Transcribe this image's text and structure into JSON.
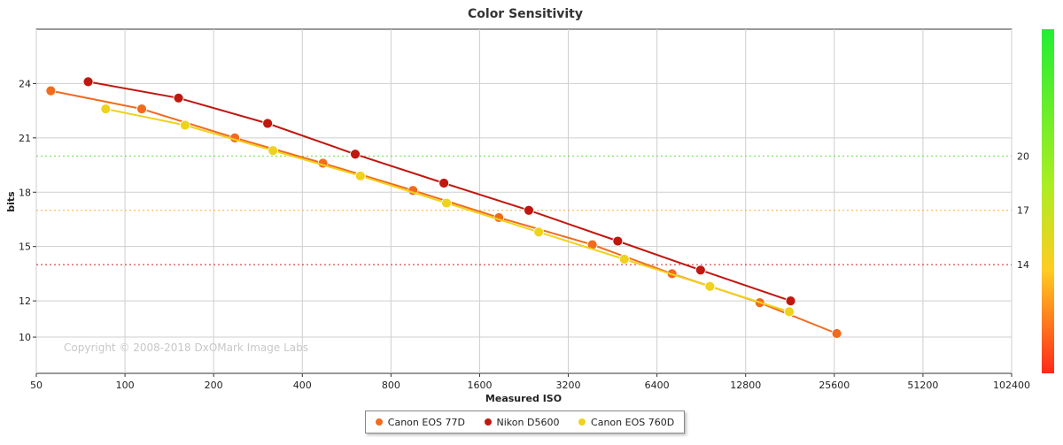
{
  "chart_data": {
    "type": "line",
    "title": "Color Sensitivity",
    "xlabel": "Measured ISO",
    "ylabel": "bits",
    "x_scale": "log2",
    "xlim": [
      50,
      102400
    ],
    "ylim": [
      8,
      27
    ],
    "x_ticks": [
      50,
      100,
      200,
      400,
      800,
      1600,
      3200,
      6400,
      12800,
      25600,
      51200,
      102400
    ],
    "x_tick_labels": [
      "50",
      "100",
      "200",
      "400",
      "800",
      "1600",
      "3200",
      "6400",
      "12800",
      "25600",
      "51200",
      "102400"
    ],
    "y_ticks": [
      10,
      12,
      15,
      18,
      21,
      24
    ],
    "y_tick_labels": [
      "10",
      "12",
      "15",
      "18",
      "21",
      "24"
    ],
    "grid": true,
    "legend_position": "bottom-center",
    "reference_lines": [
      {
        "value": 20,
        "label": "20",
        "color": "#66dd44"
      },
      {
        "value": 17,
        "label": "17",
        "color": "#ffaa33"
      },
      {
        "value": 14,
        "label": "14",
        "color": "#cc2222"
      }
    ],
    "copyright": "Copyright © 2008-2018 DxOMark Image Labs",
    "series": [
      {
        "name": "Canon EOS 77D",
        "color": "#f26b1d",
        "points": [
          [
            56,
            23.6
          ],
          [
            114,
            22.6
          ],
          [
            236,
            21.0
          ],
          [
            470,
            19.6
          ],
          [
            950,
            18.1
          ],
          [
            1860,
            16.6
          ],
          [
            3860,
            15.1
          ],
          [
            7200,
            13.5
          ],
          [
            14300,
            11.9
          ],
          [
            26100,
            10.2
          ]
        ]
      },
      {
        "name": "Nikon D5600",
        "color": "#c0170f",
        "points": [
          [
            75,
            24.1
          ],
          [
            152,
            23.2
          ],
          [
            305,
            21.8
          ],
          [
            605,
            20.1
          ],
          [
            1210,
            18.5
          ],
          [
            2350,
            17.0
          ],
          [
            4710,
            15.3
          ],
          [
            9000,
            13.7
          ],
          [
            18200,
            12.0
          ]
        ]
      },
      {
        "name": "Canon EOS 760D",
        "color": "#f0d21c",
        "points": [
          [
            86,
            22.6
          ],
          [
            160,
            21.7
          ],
          [
            318,
            20.3
          ],
          [
            630,
            18.9
          ],
          [
            1235,
            17.4
          ],
          [
            2540,
            15.8
          ],
          [
            4960,
            14.3
          ],
          [
            9680,
            12.8
          ],
          [
            18000,
            11.4
          ]
        ]
      }
    ]
  }
}
